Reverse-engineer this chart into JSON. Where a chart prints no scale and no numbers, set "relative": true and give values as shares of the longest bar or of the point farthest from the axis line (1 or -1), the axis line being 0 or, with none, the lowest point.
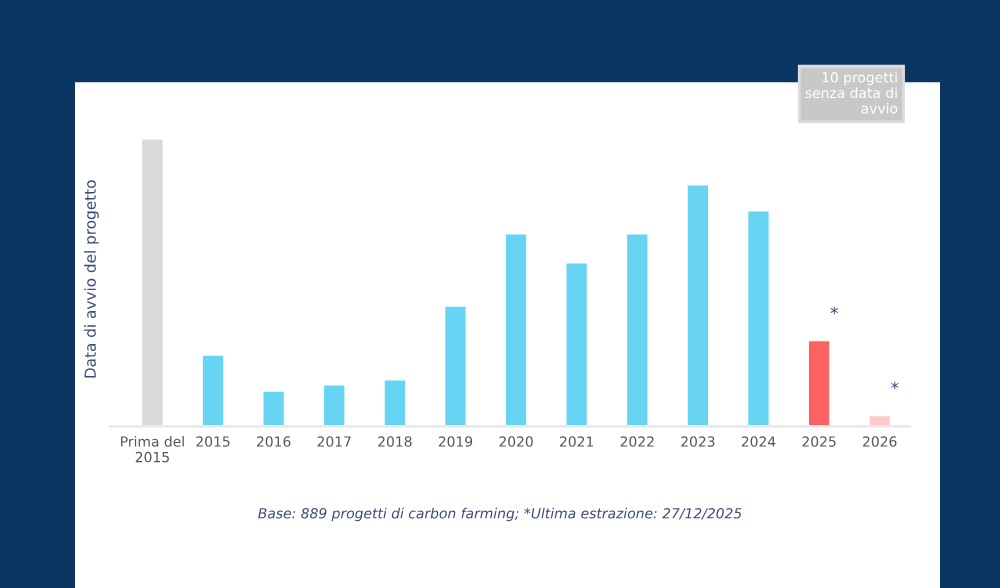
{
  "chart_data": {
    "type": "bar",
    "relative": true,
    "tick_labels": "x",
    "grid": false,
    "legend": false,
    "ylabel": "Data di avvio del progetto",
    "categories": [
      "Prima del\n2015",
      "2015",
      "2016",
      "2017",
      "2018",
      "2019",
      "2020",
      "2021",
      "2022",
      "2023",
      "2024",
      "2025",
      "2026"
    ],
    "values": [
      1,
      0.25,
      0.125,
      0.146,
      0.164,
      0.42,
      0.67,
      0.57,
      0.67,
      0.84,
      0.75,
      0.3,
      0.04
    ],
    "colors": [
      "#d9d9d9",
      "#66d4f2",
      "#66d4f2",
      "#66d4f2",
      "#66d4f2",
      "#66d4f2",
      "#66d4f2",
      "#66d4f2",
      "#66d4f2",
      "#66d4f2",
      "#66d4f2",
      "#ff6161",
      "#ffc9c9"
    ],
    "annotations": [
      "*",
      "*",
      "10 progetti\nsenza data di\navvio",
      "Base: 889 progetti di carbon farming; *Ultima estrazione: 27/12/2025"
    ]
  }
}
